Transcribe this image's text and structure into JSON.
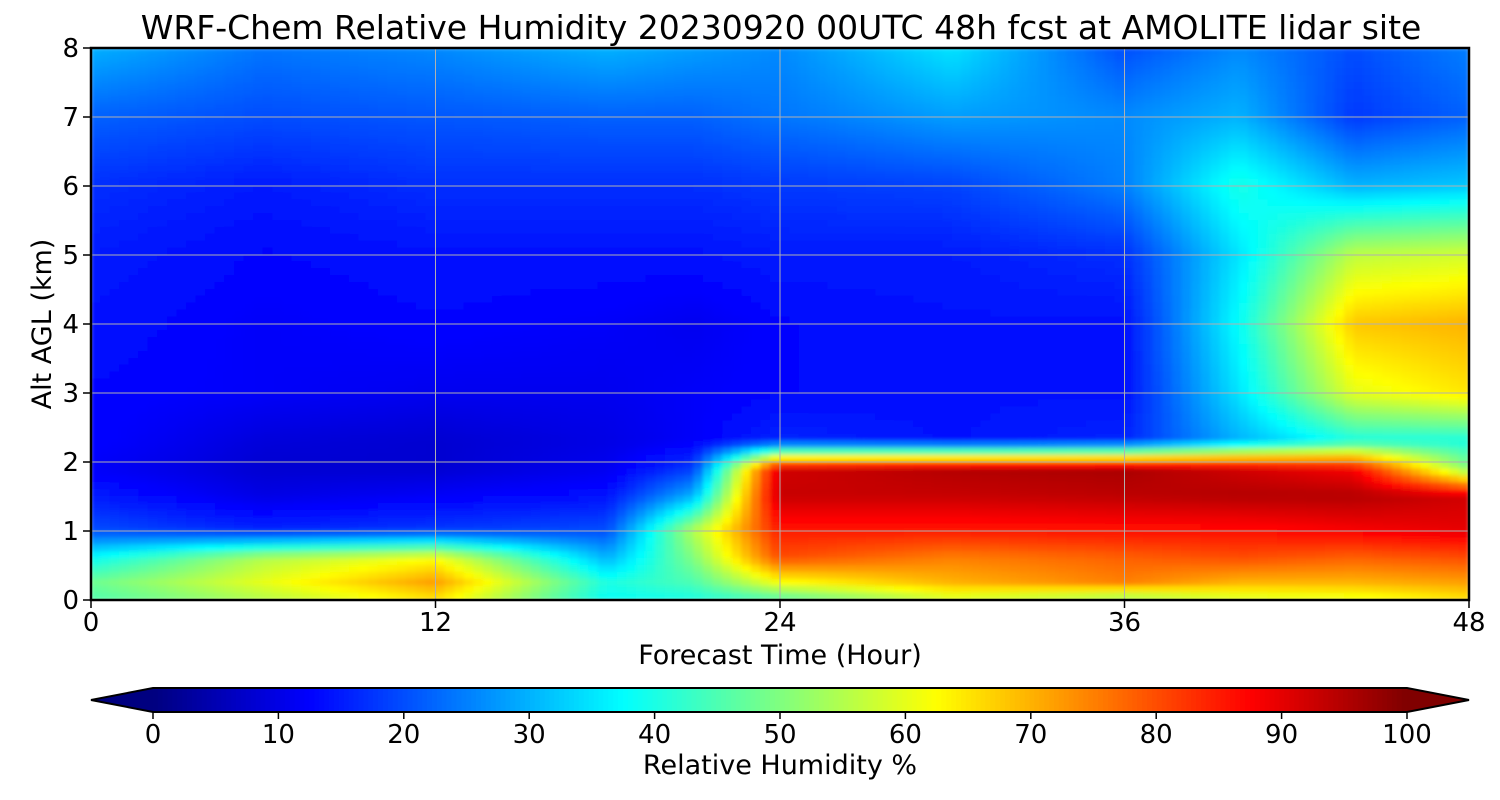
{
  "chart_data": {
    "type": "heatmap",
    "title": "WRF-Chem Relative Humidity 20230920 00UTC 48h fcst at AMOLITE lidar site",
    "xlabel": "Forecast Time (Hour)",
    "ylabel": "Alt AGL (km)",
    "xlim": [
      0,
      48
    ],
    "ylim": [
      0,
      8
    ],
    "xticks": [
      "0",
      "12",
      "24",
      "36",
      "48"
    ],
    "yticks": [
      "0",
      "1",
      "2",
      "3",
      "4",
      "5",
      "6",
      "7",
      "8"
    ],
    "grid": true,
    "colormap": "jet",
    "colorbar": {
      "label": "Relative Humidity %",
      "range": [
        0,
        100
      ],
      "ticks": [
        "0",
        "10",
        "20",
        "30",
        "40",
        "50",
        "60",
        "70",
        "80",
        "90",
        "100"
      ],
      "extend": "both",
      "orientation": "horizontal"
    },
    "x": [
      0,
      6,
      12,
      18,
      21,
      24,
      30,
      36,
      40,
      44,
      48
    ],
    "y": [
      0,
      0.25,
      0.6,
      1.0,
      1.5,
      1.9,
      2.3,
      3.0,
      4.0,
      5.0,
      6.0,
      7.0,
      8.0
    ],
    "z": [
      [
        45,
        55,
        65,
        38,
        40,
        45,
        58,
        52,
        58,
        60,
        65
      ],
      [
        48,
        60,
        72,
        40,
        45,
        62,
        70,
        75,
        70,
        70,
        72
      ],
      [
        38,
        55,
        62,
        30,
        50,
        80,
        75,
        78,
        80,
        78,
        80
      ],
      [
        20,
        16,
        18,
        20,
        55,
        85,
        85,
        86,
        86,
        88,
        90
      ],
      [
        15,
        10,
        12,
        14,
        30,
        93,
        93,
        94,
        95,
        95,
        92
      ],
      [
        12,
        8,
        8,
        11,
        18,
        92,
        95,
        96,
        92,
        88,
        50
      ],
      [
        13,
        9,
        8,
        10,
        12,
        16,
        14,
        16,
        30,
        40,
        40
      ],
      [
        13,
        12,
        11,
        11,
        12,
        13,
        14,
        14,
        35,
        60,
        65
      ],
      [
        14,
        12,
        13,
        12,
        11,
        13,
        14,
        14,
        38,
        68,
        70
      ],
      [
        15,
        13,
        14,
        14,
        14,
        15,
        15,
        17,
        35,
        56,
        58
      ],
      [
        17,
        15,
        17,
        17,
        17,
        18,
        19,
        25,
        40,
        30,
        32
      ],
      [
        22,
        20,
        21,
        22,
        22,
        24,
        28,
        26,
        30,
        18,
        22
      ],
      [
        30,
        24,
        26,
        30,
        28,
        26,
        35,
        20,
        26,
        20,
        25
      ]
    ]
  }
}
